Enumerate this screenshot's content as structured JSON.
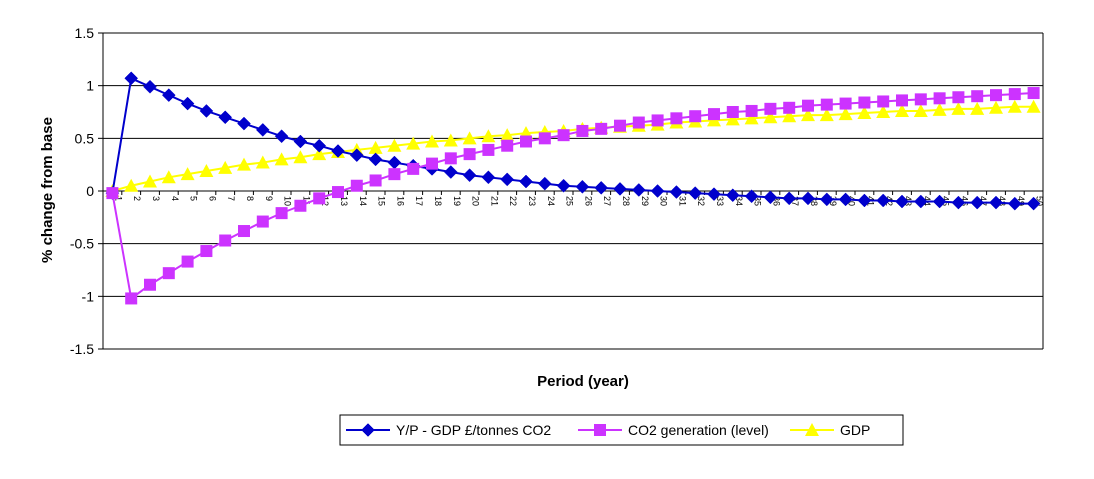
{
  "chart_data": {
    "type": "line",
    "xlabel": "Period (year)",
    "ylabel": "% change from base",
    "ylim": [
      -1.5,
      1.5
    ],
    "yticks": [
      1.5,
      1,
      0.5,
      0,
      -0.5,
      -1,
      -1.5
    ],
    "ytick_labels": [
      "1.5",
      "1",
      "0.5",
      "0",
      "-0.5",
      "-1",
      "-1.5"
    ],
    "grid": "horizontal",
    "legend_position": "bottom-center",
    "categories": [
      "1",
      "2",
      "3",
      "4",
      "5",
      "6",
      "7",
      "8",
      "9",
      "10",
      "11",
      "12",
      "13",
      "14",
      "15",
      "16",
      "17",
      "18",
      "19",
      "20",
      "21",
      "22",
      "23",
      "24",
      "25",
      "26",
      "27",
      "28",
      "29",
      "30",
      "31",
      "32",
      "33",
      "34",
      "35",
      "36",
      "37",
      "38",
      "39",
      "40",
      "41",
      "42",
      "43",
      "44",
      "45",
      "46",
      "47",
      "48",
      "49",
      "50"
    ],
    "series": [
      {
        "name": "Y/P - GDP £/tonnes CO2",
        "color": "#0000cc",
        "marker": "diamond",
        "values": [
          -0.02,
          1.07,
          0.99,
          0.91,
          0.83,
          0.76,
          0.7,
          0.64,
          0.58,
          0.52,
          0.47,
          0.43,
          0.38,
          0.34,
          0.3,
          0.27,
          0.24,
          0.21,
          0.18,
          0.15,
          0.13,
          0.11,
          0.09,
          0.07,
          0.05,
          0.04,
          0.03,
          0.02,
          0.01,
          0.0,
          -0.01,
          -0.02,
          -0.03,
          -0.04,
          -0.05,
          -0.06,
          -0.07,
          -0.07,
          -0.08,
          -0.08,
          -0.09,
          -0.09,
          -0.1,
          -0.1,
          -0.1,
          -0.11,
          -0.11,
          -0.11,
          -0.12,
          -0.12
        ]
      },
      {
        "name": "CO2 generation (level)",
        "color": "#cc33ff",
        "marker": "square",
        "values": [
          -0.02,
          -1.02,
          -0.89,
          -0.78,
          -0.67,
          -0.57,
          -0.47,
          -0.38,
          -0.29,
          -0.21,
          -0.14,
          -0.07,
          -0.01,
          0.05,
          0.1,
          0.16,
          0.21,
          0.26,
          0.31,
          0.35,
          0.39,
          0.43,
          0.47,
          0.5,
          0.53,
          0.57,
          0.59,
          0.62,
          0.65,
          0.67,
          0.69,
          0.71,
          0.73,
          0.75,
          0.76,
          0.78,
          0.79,
          0.81,
          0.82,
          0.83,
          0.84,
          0.85,
          0.86,
          0.87,
          0.88,
          0.89,
          0.9,
          0.91,
          0.92,
          0.93
        ]
      },
      {
        "name": "GDP",
        "color": "#ffff00",
        "marker": "triangle",
        "values": [
          0.0,
          0.05,
          0.09,
          0.13,
          0.16,
          0.19,
          0.22,
          0.25,
          0.27,
          0.3,
          0.32,
          0.35,
          0.37,
          0.39,
          0.41,
          0.43,
          0.45,
          0.47,
          0.48,
          0.5,
          0.52,
          0.53,
          0.55,
          0.56,
          0.57,
          0.59,
          0.6,
          0.61,
          0.62,
          0.63,
          0.65,
          0.66,
          0.67,
          0.68,
          0.69,
          0.7,
          0.71,
          0.72,
          0.72,
          0.73,
          0.74,
          0.75,
          0.76,
          0.76,
          0.77,
          0.78,
          0.78,
          0.79,
          0.8,
          0.8
        ]
      }
    ]
  }
}
